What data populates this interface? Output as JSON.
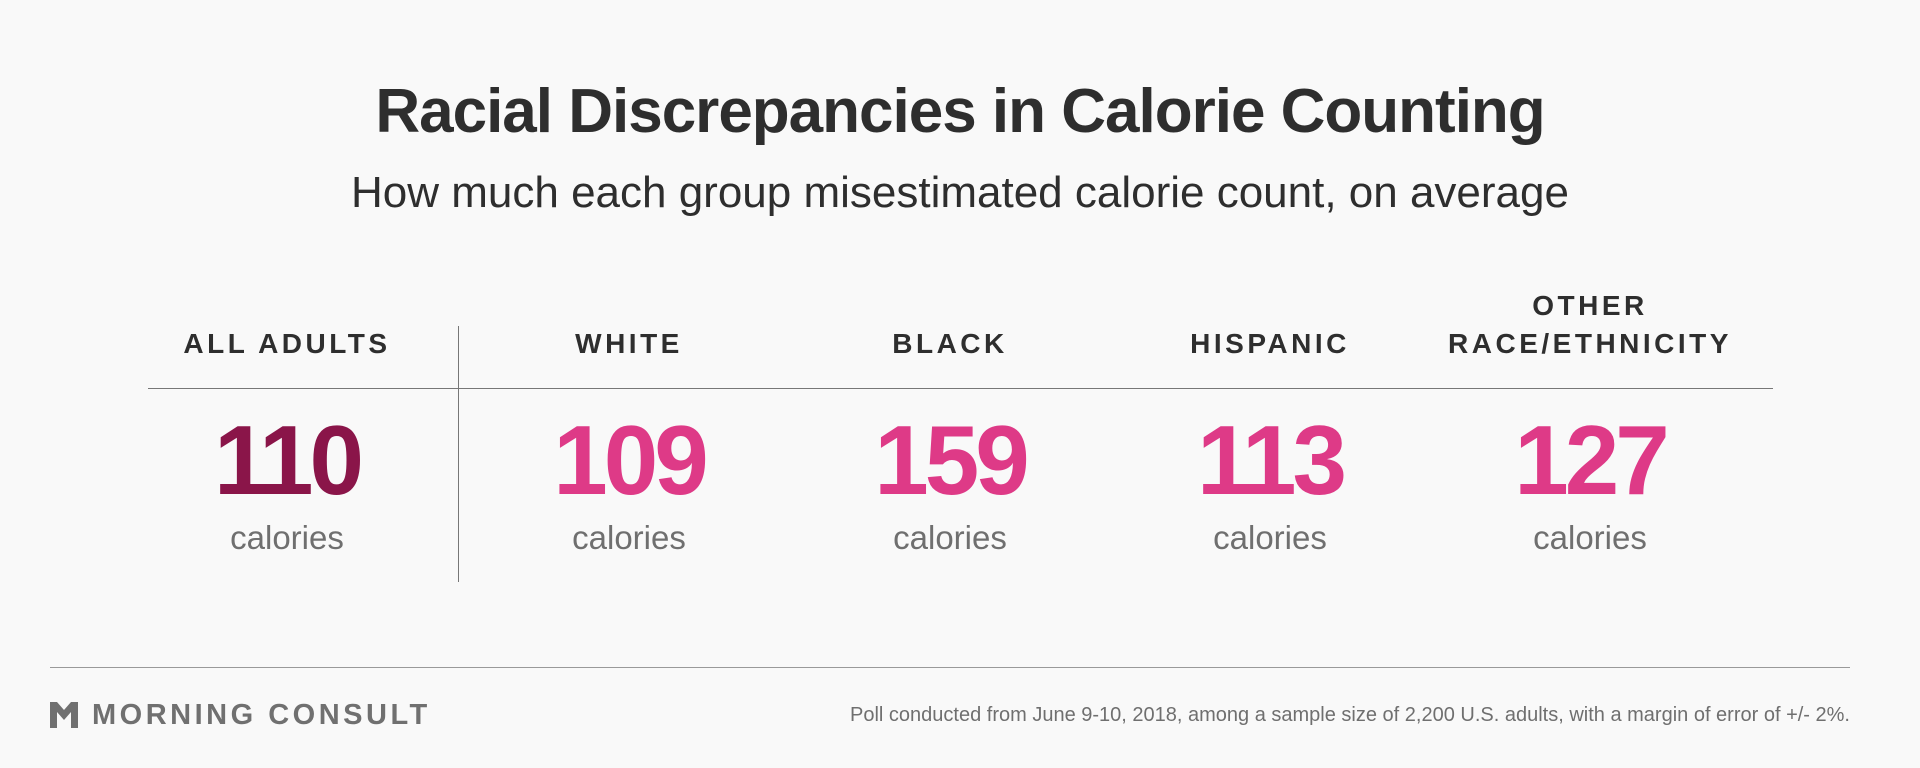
{
  "chart_data": {
    "type": "table",
    "title": "Racial Discrepancies in Calorie Counting",
    "subtitle": "How much each group misestimated calorie count, on average",
    "categories": [
      "ALL ADULTS",
      "WHITE",
      "BLACK",
      "HISPANIC",
      "OTHER RACE/ETHNICITY"
    ],
    "columns": [
      {
        "label": "ALL ADULTS",
        "label_lines": [
          "ALL ADULTS"
        ],
        "value": 110,
        "unit": "calories",
        "color": "#8a1549"
      },
      {
        "label": "WHITE",
        "label_lines": [
          "WHITE"
        ],
        "value": 109,
        "unit": "calories",
        "color": "#de3a87"
      },
      {
        "label": "BLACK",
        "label_lines": [
          "BLACK"
        ],
        "value": 159,
        "unit": "calories",
        "color": "#de3a87"
      },
      {
        "label": "HISPANIC",
        "label_lines": [
          "HISPANIC"
        ],
        "value": 113,
        "unit": "calories",
        "color": "#de3a87"
      },
      {
        "label": "OTHER RACE/ETHNICITY",
        "label_lines": [
          "OTHER",
          "RACE/ETHNICITY"
        ],
        "value": 127,
        "unit": "calories",
        "color": "#de3a87"
      }
    ]
  },
  "footer": {
    "brand": "MORNING CONSULT",
    "brand_icon": "morning-consult-chevron-logo",
    "note": "Poll conducted from June 9-10, 2018, among a sample size of 2,200 U.S. adults, with a margin of error of +/- 2%."
  },
  "colors": {
    "highlight": "#8a1549",
    "accent": "#de3a87",
    "text": "#2e2e2e",
    "muted": "#6f6f6f",
    "rule": "#777777"
  }
}
